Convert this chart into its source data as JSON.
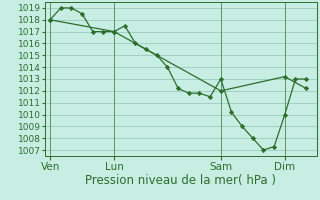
{
  "xlabel": "Pression niveau de la mer( hPa )",
  "bg_color": "#c8eee4",
  "grid_color": "#99ccbb",
  "line_color": "#2d6e2d",
  "marker_color": "#2d6e2d",
  "ylim": [
    1006.5,
    1019.5
  ],
  "yticks": [
    1007,
    1008,
    1009,
    1010,
    1011,
    1012,
    1013,
    1014,
    1015,
    1016,
    1017,
    1018,
    1019
  ],
  "xtick_labels": [
    "Ven",
    "Lun",
    "Sam",
    "Dim"
  ],
  "xtick_positions": [
    0,
    24,
    64,
    88
  ],
  "vlines_x": [
    0,
    24,
    64,
    88
  ],
  "series1_x": [
    0,
    4,
    8,
    12,
    16,
    20,
    24,
    28,
    32,
    36,
    40,
    44,
    48,
    52,
    56,
    60,
    64,
    68,
    72,
    76,
    80,
    84,
    88,
    92,
    96
  ],
  "series1_y": [
    1018.0,
    1019.0,
    1019.0,
    1018.5,
    1017.0,
    1017.0,
    1017.0,
    1017.5,
    1016.0,
    1015.5,
    1015.0,
    1014.0,
    1012.2,
    1011.8,
    1011.8,
    1011.5,
    1013.0,
    1010.2,
    1009.0,
    1008.0,
    1007.0,
    1007.3,
    1010.0,
    1013.0,
    1013.0
  ],
  "series2_x": [
    0,
    24,
    64,
    88,
    96
  ],
  "series2_y": [
    1018.0,
    1017.0,
    1012.0,
    1013.2,
    1012.2
  ],
  "xlim": [
    -2,
    100
  ],
  "font_size_xlabel": 8.5,
  "font_size_yticks": 6.5,
  "font_size_xticks": 7.5
}
